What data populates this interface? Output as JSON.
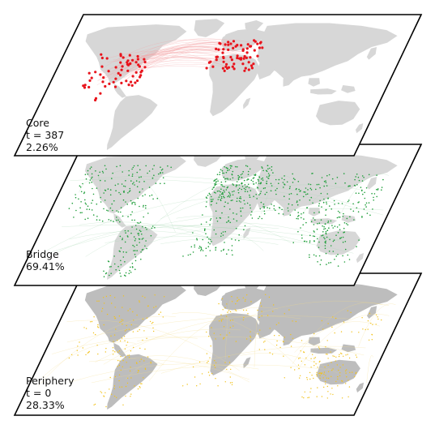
{
  "layers": [
    {
      "id": "core",
      "label_lines": [
        "Core",
        "t = 387",
        "2.26%"
      ],
      "node_color": "#e8141c",
      "link_color": "#f4a3a6"
    },
    {
      "id": "bridge",
      "label_lines": [
        "Bridge",
        "69.41%"
      ],
      "node_color": "#1f9e3a",
      "link_color": "#a8d8b3"
    },
    {
      "id": "periphery",
      "label_lines": [
        "Periphery",
        "t = 0",
        "28.33%"
      ],
      "node_color": "#f2c21b",
      "link_color": "#f5dc8a"
    }
  ],
  "colors": {
    "land": "#d7d7d7",
    "land_dark": "#bdbdbd",
    "frame": "#000000",
    "background": "#ffffff"
  }
}
